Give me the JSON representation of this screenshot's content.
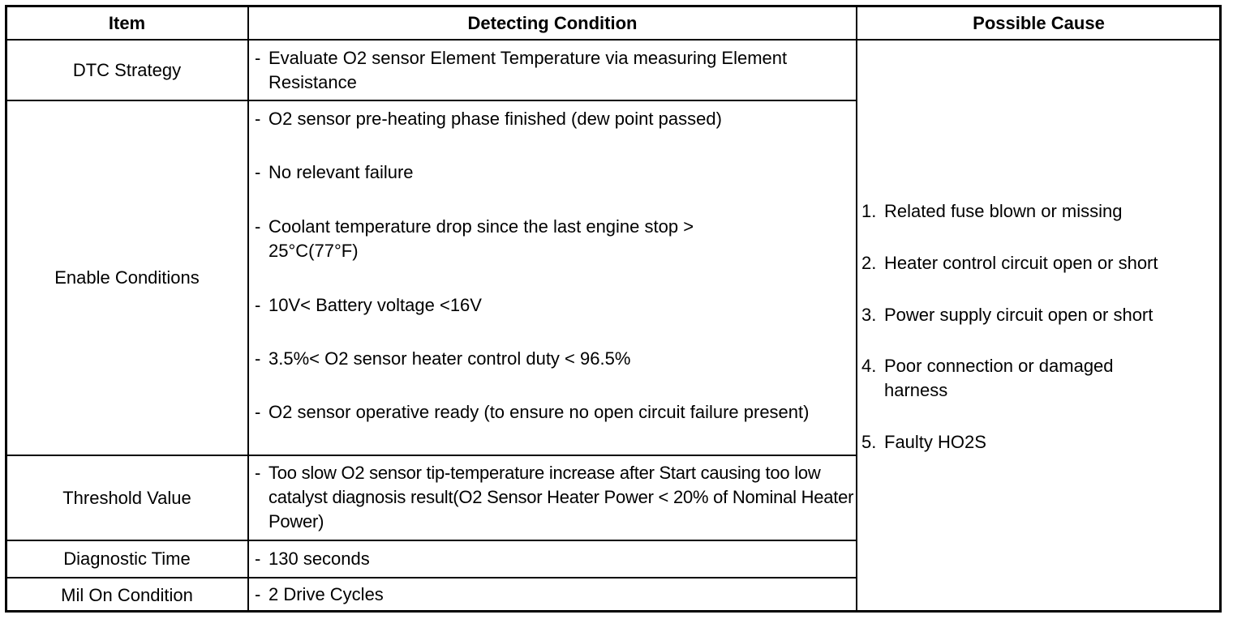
{
  "headers": {
    "item": "Item",
    "detecting": "Detecting Condition",
    "cause": "Possible Cause"
  },
  "rows": [
    {
      "item": "DTC Strategy",
      "conditions": [
        "Evaluate O2 sensor Element Temperature via measuring Element Resistance"
      ]
    },
    {
      "item": "Enable Conditions",
      "conditions": [
        "O2 sensor pre-heating phase finished (dew point passed)",
        "No relevant failure",
        "Coolant temperature drop since the last engine stop > 25°C(77°F)",
        "10V< Battery voltage <16V",
        "3.5%< O2 sensor heater control duty < 96.5%",
        "O2 sensor operative ready (to ensure no open circuit failure present)"
      ]
    },
    {
      "item": "Threshold Value",
      "conditions": [
        "Too slow O2 sensor tip-temperature increase after Start causing too low catalyst diagnosis result(O2 Sensor Heater Power < 20% of Nominal Heater Power)"
      ]
    },
    {
      "item": "Diagnostic Time",
      "conditions": [
        "130 seconds"
      ]
    },
    {
      "item": "Mil On Condition",
      "conditions": [
        "2 Drive Cycles"
      ]
    }
  ],
  "dash": "-",
  "causes": [
    {
      "num": "1.",
      "text": "Related fuse blown or missing"
    },
    {
      "num": "2.",
      "text": "Heater control circuit open or short"
    },
    {
      "num": "3.",
      "text": "Power supply circuit open or short"
    },
    {
      "num": "4.",
      "text": "Poor connection or damaged harness"
    },
    {
      "num": "5.",
      "text": "Faulty HO2S"
    }
  ]
}
